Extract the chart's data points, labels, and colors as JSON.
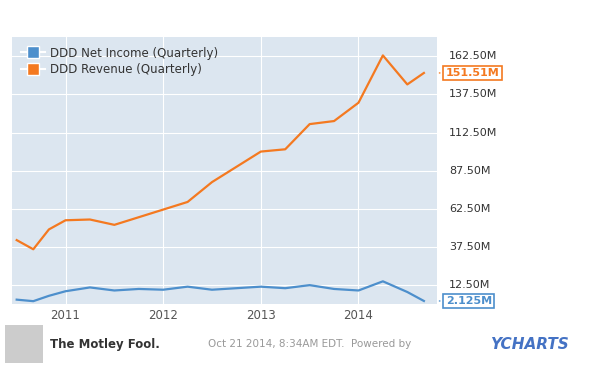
{
  "bg_color": "#dce6f0",
  "outer_bg_color": "#ffffff",
  "legend": [
    {
      "label": "DDD Net Income (Quarterly)",
      "color": "#4d8fcc"
    },
    {
      "label": "DDD Revenue (Quarterly)",
      "color": "#f47920"
    }
  ],
  "x_min": 2010.45,
  "x_max": 2014.8,
  "y_min": 0,
  "y_max": 175,
  "y_ticks": [
    12.5,
    37.5,
    62.5,
    87.5,
    112.5,
    137.5,
    162.5
  ],
  "y_tick_labels": [
    "12.50M",
    "37.50M",
    "62.50M",
    "87.50M",
    "112.50M",
    "137.50M",
    "162.50M"
  ],
  "x_ticks": [
    2011.0,
    2012.0,
    2013.0,
    2014.0
  ],
  "x_tick_labels": [
    "2011",
    "2012",
    "2013",
    "2014"
  ],
  "net_income_color": "#4d8fcc",
  "revenue_color": "#f47920",
  "net_income_x": [
    2010.5,
    2010.67,
    2010.83,
    2011.0,
    2011.25,
    2011.5,
    2011.75,
    2012.0,
    2012.25,
    2012.5,
    2012.75,
    2013.0,
    2013.25,
    2013.5,
    2013.75,
    2014.0,
    2014.25,
    2014.5,
    2014.67
  ],
  "net_income_y": [
    3.0,
    2.0,
    5.5,
    8.5,
    11.0,
    9.0,
    10.0,
    9.5,
    11.5,
    9.5,
    10.5,
    11.5,
    10.5,
    12.5,
    10.0,
    9.0,
    15.0,
    8.0,
    2.125
  ],
  "revenue_x": [
    2010.5,
    2010.67,
    2010.83,
    2011.0,
    2011.25,
    2011.5,
    2011.75,
    2012.0,
    2012.25,
    2012.5,
    2012.75,
    2013.0,
    2013.25,
    2013.5,
    2013.75,
    2014.0,
    2014.25,
    2014.5,
    2014.67
  ],
  "revenue_y": [
    42.0,
    36.0,
    49.0,
    55.0,
    55.5,
    52.0,
    57.0,
    62.0,
    67.0,
    80.0,
    90.0,
    100.0,
    101.5,
    118.0,
    120.0,
    132.0,
    163.0,
    144.0,
    151.51
  ],
  "end_label_revenue": "151.51M",
  "end_label_net_income": "2.125M",
  "line_width": 1.6,
  "grid_color": "#ffffff",
  "footer_date": "Oct 21 2014, 8:34AM EDT.  Powered by",
  "footer_ycharts": "YCHARTS"
}
